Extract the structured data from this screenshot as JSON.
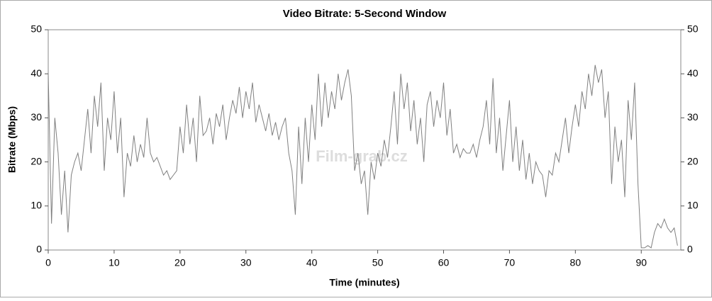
{
  "chart_data": {
    "type": "line",
    "title": "Video Bitrate: 5-Second Window",
    "x_label": "Time (minutes)",
    "y_label": "Bitrate (Mbps)",
    "watermark": "Film-grab.cz",
    "xlim": [
      0,
      96
    ],
    "xticks": [
      0,
      10,
      20,
      30,
      40,
      50,
      60,
      70,
      80,
      90
    ],
    "ylim": [
      0,
      50
    ],
    "yticks": [
      0,
      10,
      20,
      30,
      40,
      50
    ],
    "y2lim": [
      0,
      50
    ],
    "y2ticks": [
      0,
      10,
      20,
      30,
      40,
      50
    ],
    "x": [
      0,
      0.5,
      1,
      1.5,
      2,
      2.5,
      3,
      3.5,
      4,
      4.5,
      5,
      5.5,
      6,
      6.5,
      7,
      7.5,
      8,
      8.5,
      9,
      9.5,
      10,
      10.5,
      11,
      11.5,
      12,
      12.5,
      13,
      13.5,
      14,
      14.5,
      15,
      15.5,
      16,
      16.5,
      17,
      17.5,
      18,
      18.5,
      19,
      19.5,
      20,
      20.5,
      21,
      21.5,
      22,
      22.5,
      23,
      23.5,
      24,
      24.5,
      25,
      25.5,
      26,
      26.5,
      27,
      27.5,
      28,
      28.5,
      29,
      29.5,
      30,
      30.5,
      31,
      31.5,
      32,
      32.5,
      33,
      33.5,
      34,
      34.5,
      35,
      35.5,
      36,
      36.5,
      37,
      37.5,
      38,
      38.5,
      39,
      39.5,
      40,
      40.5,
      41,
      41.5,
      42,
      42.5,
      43,
      43.5,
      44,
      44.5,
      45,
      45.5,
      46,
      46.5,
      47,
      47.5,
      48,
      48.5,
      49,
      49.5,
      50,
      50.5,
      51,
      51.5,
      52,
      52.5,
      53,
      53.5,
      54,
      54.5,
      55,
      55.5,
      56,
      56.5,
      57,
      57.5,
      58,
      58.5,
      59,
      59.5,
      60,
      60.5,
      61,
      61.5,
      62,
      62.5,
      63,
      63.5,
      64,
      64.5,
      65,
      65.5,
      66,
      66.5,
      67,
      67.5,
      68,
      68.5,
      69,
      69.5,
      70,
      70.5,
      71,
      71.5,
      72,
      72.5,
      73,
      73.5,
      74,
      74.5,
      75,
      75.5,
      76,
      76.5,
      77,
      77.5,
      78,
      78.5,
      79,
      79.5,
      80,
      80.5,
      81,
      81.5,
      82,
      82.5,
      83,
      83.5,
      84,
      84.5,
      85,
      85.5,
      86,
      86.5,
      87,
      87.5,
      88,
      88.5,
      89,
      89.5,
      90,
      90.5,
      91,
      91.5,
      92,
      92.5,
      93,
      93.5,
      94,
      94.5,
      95,
      95.5
    ],
    "series": [
      {
        "color": "#808080",
        "values": [
          40,
          6,
          30,
          22,
          8,
          18,
          4,
          17,
          20,
          22,
          18,
          25,
          32,
          22,
          35,
          28,
          38,
          18,
          30,
          25,
          36,
          22,
          30,
          12,
          22,
          19,
          26,
          20,
          24,
          21,
          30,
          22,
          20,
          21,
          19,
          17,
          18,
          16,
          17,
          18,
          28,
          22,
          33,
          24,
          30,
          20,
          35,
          26,
          27,
          30,
          24,
          31,
          28,
          33,
          25,
          30,
          34,
          31,
          37,
          30,
          36,
          32,
          38,
          29,
          33,
          30,
          27,
          31,
          26,
          29,
          25,
          28,
          30,
          22,
          18,
          8,
          28,
          15,
          30,
          20,
          33,
          25,
          40,
          28,
          38,
          30,
          36,
          32,
          40,
          34,
          38,
          41,
          35,
          18,
          22,
          15,
          18,
          8,
          20,
          16,
          22,
          19,
          25,
          21,
          28,
          36,
          24,
          40,
          32,
          38,
          27,
          34,
          24,
          30,
          20,
          33,
          36,
          28,
          34,
          30,
          38,
          26,
          32,
          22,
          24,
          21,
          23,
          22,
          22,
          24,
          21,
          25,
          28,
          34,
          24,
          39,
          22,
          30,
          18,
          26,
          34,
          20,
          28,
          18,
          25,
          16,
          22,
          15,
          20,
          18,
          17,
          12,
          18,
          17,
          22,
          20,
          25,
          30,
          22,
          28,
          33,
          28,
          36,
          32,
          40,
          35,
          42,
          38,
          41,
          30,
          36,
          15,
          28,
          20,
          25,
          12,
          34,
          25,
          38,
          15,
          0.5,
          0.5,
          1,
          0.5,
          4,
          6,
          5,
          7,
          5,
          4,
          5,
          1
        ]
      }
    ]
  }
}
